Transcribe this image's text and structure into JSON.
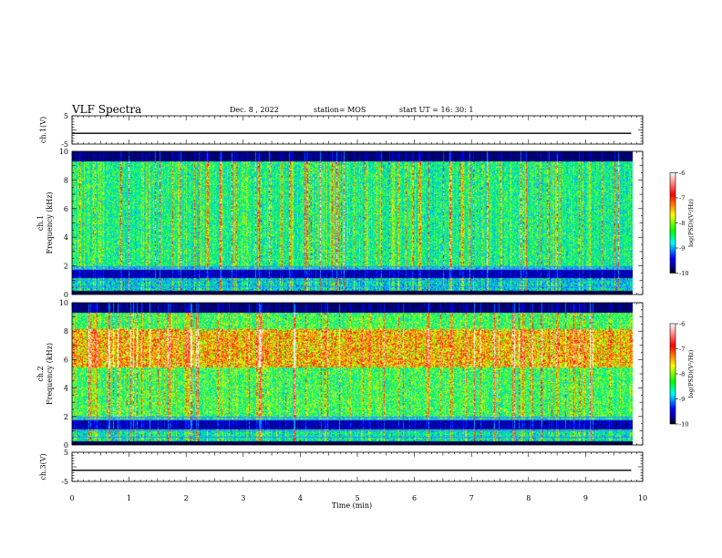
{
  "header": {
    "title": "VLF Spectra",
    "date": "Dec. 8 , 2022",
    "station": "station= MOS",
    "start_ut": "start  UT =   16: 30: 1"
  },
  "colorbar": {
    "label": "log(PSD)(V²/Hz)",
    "ticks": [
      "-6",
      "-7",
      "-8",
      "-9",
      "-10"
    ],
    "colormap": [
      "#ffffff",
      "#ff0000",
      "#ffff00",
      "#00ff00",
      "#00ffff",
      "#0000ff",
      "#000080",
      "#000000"
    ]
  },
  "chart_data": [
    {
      "type": "line",
      "panel": "ch1-waveform",
      "ylabel": "ch.1(V)",
      "ylim": [
        -5,
        5
      ],
      "yticks": [
        "5",
        "-5"
      ],
      "xlim": [
        0,
        10
      ],
      "x": [
        0,
        9.8
      ],
      "values": [
        -1.2,
        -1.2
      ]
    },
    {
      "type": "heatmap",
      "panel": "ch1-spectrogram",
      "ylabel": "ch.1",
      "ylabel2": "Frequency (kHz)",
      "ylim": [
        0,
        10
      ],
      "yticks": [
        "0",
        "2",
        "4",
        "6",
        "8",
        "10"
      ],
      "xlim": [
        0,
        9.83
      ],
      "zlim": [
        -10,
        -6
      ]
    },
    {
      "type": "heatmap",
      "panel": "ch2-spectrogram",
      "ylabel": "ch.2",
      "ylabel2": "Frequency (kHz)",
      "ylim": [
        0,
        10
      ],
      "yticks": [
        "0",
        "2",
        "4",
        "6",
        "8",
        "10"
      ],
      "xlim": [
        0,
        9.83
      ],
      "zlim": [
        -10,
        -6
      ]
    },
    {
      "type": "line",
      "panel": "ch3-waveform",
      "ylabel": "ch.3(V)",
      "ylim": [
        -5,
        5
      ],
      "yticks": [
        "5",
        "-5"
      ],
      "xlabel": "Time  (min)",
      "xticks": [
        "0",
        "1",
        "2",
        "3",
        "4",
        "5",
        "6",
        "7",
        "8",
        "9",
        "10"
      ],
      "xlim": [
        0,
        10
      ],
      "x": [
        0,
        9.8
      ],
      "values": [
        -1.2,
        -1.2
      ]
    }
  ]
}
